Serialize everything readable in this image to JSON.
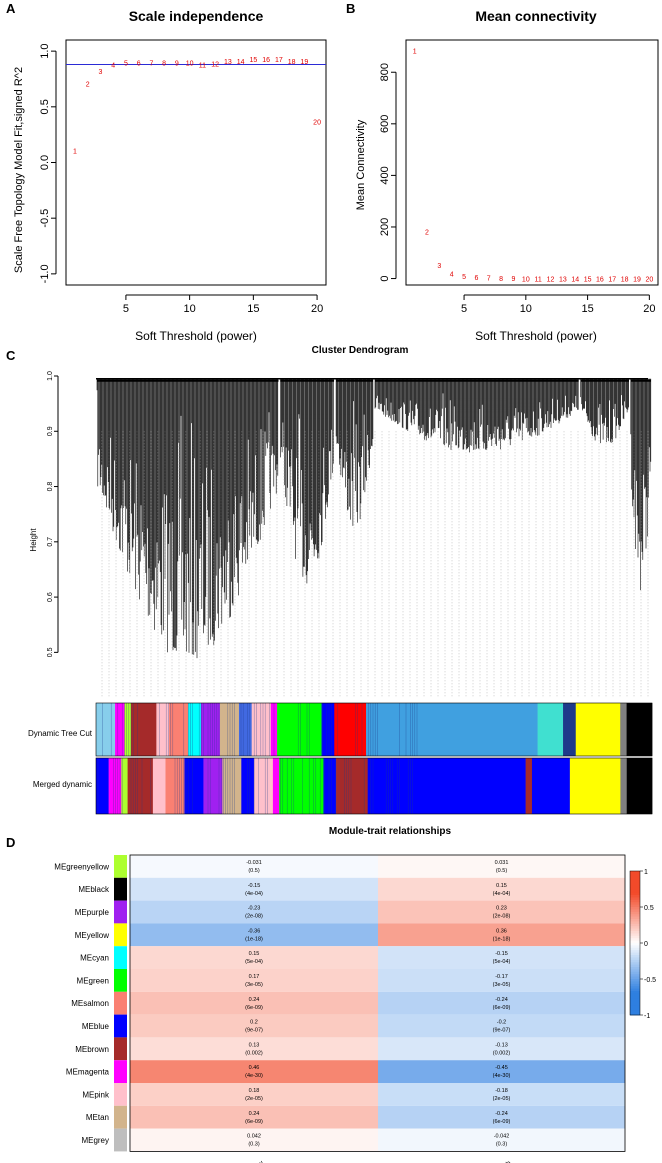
{
  "panel_labels": {
    "a": "A",
    "b": "B",
    "c": "C",
    "d": "D"
  },
  "colors": {
    "point": "#e00000",
    "cutoff_line": "#2b2bd6",
    "heat_high": "#f24a2a",
    "heat_low": "#2e7fe0",
    "heat_mid": "#ffffff"
  },
  "chart_data": [
    {
      "type": "scatter",
      "panel": "A",
      "title": "Scale independence",
      "xlabel": "Soft Threshold (power)",
      "ylabel": "Scale Free Topology Model Fit,signed R^2",
      "xlim": [
        0.3,
        20.7
      ],
      "ylim": [
        -1.1,
        1.1
      ],
      "xticks": [
        5,
        10,
        15,
        20
      ],
      "yticks": [
        -1.0,
        -0.5,
        0.0,
        0.5,
        1.0
      ],
      "ytick_labels": [
        "-1.0",
        "-0.5",
        "0.0",
        "0.5",
        "1.0"
      ],
      "cutoff_line_y": 0.88,
      "points": [
        {
          "x": 1,
          "y": 0.11,
          "label": "1"
        },
        {
          "x": 2,
          "y": 0.71,
          "label": "2"
        },
        {
          "x": 3,
          "y": 0.82,
          "label": "3"
        },
        {
          "x": 4,
          "y": 0.88,
          "label": "4"
        },
        {
          "x": 5,
          "y": 0.9,
          "label": "5"
        },
        {
          "x": 6,
          "y": 0.9,
          "label": "6"
        },
        {
          "x": 7,
          "y": 0.9,
          "label": "7"
        },
        {
          "x": 8,
          "y": 0.9,
          "label": "8"
        },
        {
          "x": 9,
          "y": 0.9,
          "label": "9"
        },
        {
          "x": 10,
          "y": 0.9,
          "label": "10"
        },
        {
          "x": 11,
          "y": 0.88,
          "label": "11"
        },
        {
          "x": 12,
          "y": 0.89,
          "label": "12"
        },
        {
          "x": 13,
          "y": 0.91,
          "label": "13"
        },
        {
          "x": 14,
          "y": 0.91,
          "label": "14"
        },
        {
          "x": 15,
          "y": 0.93,
          "label": "15"
        },
        {
          "x": 16,
          "y": 0.93,
          "label": "16"
        },
        {
          "x": 17,
          "y": 0.93,
          "label": "17"
        },
        {
          "x": 18,
          "y": 0.91,
          "label": "18"
        },
        {
          "x": 19,
          "y": 0.91,
          "label": "19"
        },
        {
          "x": 20,
          "y": 0.37,
          "label": "20"
        }
      ]
    },
    {
      "type": "scatter",
      "panel": "B",
      "title": "Mean connectivity",
      "xlabel": "Soft Threshold (power)",
      "ylabel": "Mean Connectivity",
      "xlim": [
        0.3,
        20.7
      ],
      "ylim": [
        -25,
        925
      ],
      "xticks": [
        5,
        10,
        15,
        20
      ],
      "yticks": [
        0,
        200,
        400,
        600,
        800
      ],
      "ytick_labels": [
        "0",
        "200",
        "400",
        "600",
        "800"
      ],
      "points": [
        {
          "x": 1,
          "y": 885,
          "label": "1"
        },
        {
          "x": 2,
          "y": 182,
          "label": "2"
        },
        {
          "x": 3,
          "y": 52,
          "label": "3"
        },
        {
          "x": 4,
          "y": 20,
          "label": "4"
        },
        {
          "x": 5,
          "y": 10,
          "label": "5"
        },
        {
          "x": 6,
          "y": 6,
          "label": "6"
        },
        {
          "x": 7,
          "y": 4,
          "label": "7"
        },
        {
          "x": 8,
          "y": 2,
          "label": "8"
        },
        {
          "x": 9,
          "y": 2,
          "label": "9"
        },
        {
          "x": 10,
          "y": 1,
          "label": "10"
        },
        {
          "x": 11,
          "y": 1,
          "label": "11"
        },
        {
          "x": 12,
          "y": 1,
          "label": "12"
        },
        {
          "x": 13,
          "y": 1,
          "label": "13"
        },
        {
          "x": 14,
          "y": 1,
          "label": "14"
        },
        {
          "x": 15,
          "y": 1,
          "label": "15"
        },
        {
          "x": 16,
          "y": 1,
          "label": "16"
        },
        {
          "x": 17,
          "y": 1,
          "label": "17"
        },
        {
          "x": 18,
          "y": 1,
          "label": "18"
        },
        {
          "x": 19,
          "y": 1,
          "label": "19"
        },
        {
          "x": 20,
          "y": 1,
          "label": "20"
        }
      ]
    },
    {
      "type": "dendrogram",
      "panel": "C",
      "title": "Cluster Dendrogram",
      "ylabel": "Height",
      "ylim": [
        0.45,
        1.0
      ],
      "yticks": [
        0.5,
        0.6,
        0.7,
        0.8,
        0.9,
        1.0
      ],
      "ytick_labels": [
        "0.5",
        "0.6",
        "0.7",
        "0.8",
        "0.9",
        "1.0"
      ],
      "color_rows": [
        "Dynamic Tree Cut",
        "Merged dynamic"
      ],
      "branch_clusters": [
        {
          "from": 0.0,
          "to": 0.33,
          "min_height": 0.48
        },
        {
          "from": 0.33,
          "to": 0.43,
          "min_height": 0.62
        },
        {
          "from": 0.43,
          "to": 0.5,
          "min_height": 0.72
        },
        {
          "from": 0.5,
          "to": 0.87,
          "min_height": 0.86
        },
        {
          "from": 0.87,
          "to": 0.96,
          "min_height": 0.87
        },
        {
          "from": 0.96,
          "to": 1.0,
          "min_height": 0.61
        }
      ],
      "dynamic_segments": [
        {
          "w": 0.03,
          "c": "#87ceeb"
        },
        {
          "w": 0.015,
          "c": "#ff00ff"
        },
        {
          "w": 0.01,
          "c": "#adff2f"
        },
        {
          "w": 0.04,
          "c": "#a52a2a"
        },
        {
          "w": 0.02,
          "c": "#ffc0cb"
        },
        {
          "w": 0.03,
          "c": "#fa8072"
        },
        {
          "w": 0.02,
          "c": "#00ffff"
        },
        {
          "w": 0.03,
          "c": "#a020f0"
        },
        {
          "w": 0.03,
          "c": "#d2b48c"
        },
        {
          "w": 0.02,
          "c": "#4169e1"
        },
        {
          "w": 0.03,
          "c": "#ffc0cb"
        },
        {
          "w": 0.01,
          "c": "#ff00ff"
        },
        {
          "w": 0.07,
          "c": "#00ff00"
        },
        {
          "w": 0.02,
          "c": "#0000ff"
        },
        {
          "w": 0.05,
          "c": "#ff0000"
        },
        {
          "w": 0.27,
          "c": "#40a0e0"
        },
        {
          "w": 0.04,
          "c": "#40e0d0"
        },
        {
          "w": 0.02,
          "c": "#1e3a8a"
        },
        {
          "w": 0.07,
          "c": "#ffff00"
        },
        {
          "w": 0.01,
          "c": "#808080"
        },
        {
          "w": 0.04,
          "c": "#000000"
        }
      ],
      "merged_segments": [
        {
          "w": 0.02,
          "c": "#0000ff"
        },
        {
          "w": 0.02,
          "c": "#ff00ff"
        },
        {
          "w": 0.01,
          "c": "#adff2f"
        },
        {
          "w": 0.04,
          "c": "#a52a2a"
        },
        {
          "w": 0.02,
          "c": "#ffc0cb"
        },
        {
          "w": 0.03,
          "c": "#fa8072"
        },
        {
          "w": 0.03,
          "c": "#0000ff"
        },
        {
          "w": 0.03,
          "c": "#a020f0"
        },
        {
          "w": 0.03,
          "c": "#d2b48c"
        },
        {
          "w": 0.02,
          "c": "#0000ff"
        },
        {
          "w": 0.03,
          "c": "#ffc0cb"
        },
        {
          "w": 0.01,
          "c": "#ff00ff"
        },
        {
          "w": 0.07,
          "c": "#00ff00"
        },
        {
          "w": 0.02,
          "c": "#0000ff"
        },
        {
          "w": 0.05,
          "c": "#a52a2a"
        },
        {
          "w": 0.25,
          "c": "#0000ff"
        },
        {
          "w": 0.01,
          "c": "#a52a2a"
        },
        {
          "w": 0.06,
          "c": "#0000ff"
        },
        {
          "w": 0.08,
          "c": "#ffff00"
        },
        {
          "w": 0.01,
          "c": "#808080"
        },
        {
          "w": 0.04,
          "c": "#000000"
        }
      ]
    },
    {
      "type": "heatmap",
      "panel": "D",
      "title": "Module-trait relationships",
      "columns": [
        "fatty_acid_low",
        "fatty_acid_high"
      ],
      "colorbar_ticks": [
        1,
        0.5,
        0,
        -0.5,
        -1
      ],
      "colorbar_tick_labels": [
        "1",
        "0.5",
        "0",
        "-0.5",
        "-1"
      ],
      "rows": [
        {
          "module": "MEgreenyellow",
          "swatch": "#adff2f",
          "values": [
            -0.031,
            0.031
          ],
          "labels": [
            "-0.031",
            "0.031"
          ],
          "pvalues": [
            "(0.5)",
            "(0.5)"
          ]
        },
        {
          "module": "MEblack",
          "swatch": "#000000",
          "values": [
            -0.15,
            0.15
          ],
          "labels": [
            "-0.15",
            "0.15"
          ],
          "pvalues": [
            "(4e-04)",
            "(4e-04)"
          ]
        },
        {
          "module": "MEpurple",
          "swatch": "#a020f0",
          "values": [
            -0.23,
            0.23
          ],
          "labels": [
            "-0.23",
            "0.23"
          ],
          "pvalues": [
            "(2e-08)",
            "(2e-08)"
          ]
        },
        {
          "module": "MEyellow",
          "swatch": "#ffff00",
          "values": [
            -0.36,
            0.36
          ],
          "labels": [
            "-0.36",
            "0.36"
          ],
          "pvalues": [
            "(1e-18)",
            "(1e-18)"
          ]
        },
        {
          "module": "MEcyan",
          "swatch": "#00ffff",
          "values": [
            0.15,
            -0.15
          ],
          "labels": [
            "0.15",
            "-0.15"
          ],
          "pvalues": [
            "(5e-04)",
            "(5e-04)"
          ]
        },
        {
          "module": "MEgreen",
          "swatch": "#00ff00",
          "values": [
            0.17,
            -0.17
          ],
          "labels": [
            "0.17",
            "-0.17"
          ],
          "pvalues": [
            "(3e-05)",
            "(3e-05)"
          ]
        },
        {
          "module": "MEsalmon",
          "swatch": "#fa8072",
          "values": [
            0.24,
            -0.24
          ],
          "labels": [
            "0.24",
            "-0.24"
          ],
          "pvalues": [
            "(6e-09)",
            "(6e-09)"
          ]
        },
        {
          "module": "MEblue",
          "swatch": "#0000ff",
          "values": [
            0.2,
            -0.2
          ],
          "labels": [
            "0.2",
            "-0.2"
          ],
          "pvalues": [
            "(9e-07)",
            "(9e-07)"
          ]
        },
        {
          "module": "MEbrown",
          "swatch": "#a52a2a",
          "values": [
            0.13,
            -0.13
          ],
          "labels": [
            "0.13",
            "-0.13"
          ],
          "pvalues": [
            "(0.002)",
            "(0.002)"
          ]
        },
        {
          "module": "MEmagenta",
          "swatch": "#ff00ff",
          "values": [
            0.46,
            -0.45
          ],
          "labels": [
            "0.46",
            "-0.45"
          ],
          "pvalues": [
            "(4e-30)",
            "(4e-30)"
          ]
        },
        {
          "module": "MEpink",
          "swatch": "#ffc0cb",
          "values": [
            0.18,
            -0.18
          ],
          "labels": [
            "0.18",
            "-0.18"
          ],
          "pvalues": [
            "(2e-05)",
            "(2e-05)"
          ]
        },
        {
          "module": "MEtan",
          "swatch": "#d2b48c",
          "values": [
            0.24,
            -0.24
          ],
          "labels": [
            "0.24",
            "-0.24"
          ],
          "pvalues": [
            "(6e-09)",
            "(6e-09)"
          ]
        },
        {
          "module": "MEgrey",
          "swatch": "#bebebe",
          "values": [
            0.042,
            -0.042
          ],
          "labels": [
            "0.042",
            "-0.042"
          ],
          "pvalues": [
            "(0.3)",
            "(0.3)"
          ]
        }
      ]
    }
  ]
}
